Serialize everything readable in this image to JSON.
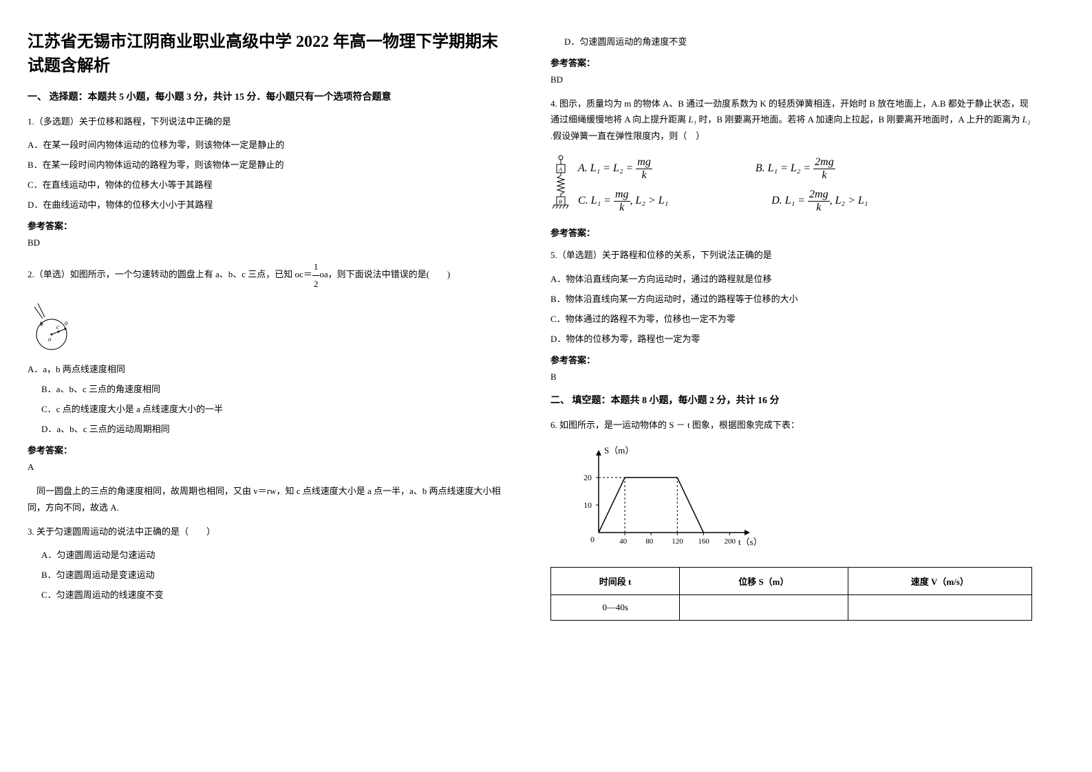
{
  "title": "江苏省无锡市江阴商业职业高级中学 2022 年高一物理下学期期末试题含解析",
  "section1": {
    "header": "一、 选择题：本题共 5 小题，每小题 3 分，共计 15 分．每小题只有一个选项符合题意",
    "q1": {
      "stem": "1.（多选题）关于位移和路程，下列说法中正确的是",
      "optA": "A．在某一段时间内物体运动的位移为零，则该物体一定是静止的",
      "optB": "B．在某一段时间内物体运动的路程为零，则该物体一定是静止的",
      "optC": "C．在直线运动中，物体的位移大小等于其路程",
      "optD": "D．在曲线运动中，物体的位移大小小于其路程",
      "answerLabel": "参考答案：",
      "answer": "BD"
    },
    "q2": {
      "stem_pre": "2.（单选）如图所示，一个匀速转动的圆盘上有 a、b、c 三点，已知 oc＝",
      "stem_post": "oa，则下面说法中错误的是(　　)",
      "frac_num": "1",
      "frac_den": "2",
      "optA": "A．a，b 两点线速度相同",
      "optB": "B．a、b、c 三点的角速度相同",
      "optC": "C．c 点的线速度大小是 a 点线速度大小的一半",
      "optD": "D．a、b、c 三点的运动周期相同",
      "answerLabel": "参考答案：",
      "answer": "A",
      "explanation": "　同一圆盘上的三点的角速度相同，故周期也相同，又由 v＝rw，知 c 点线速度大小是 a 点一半，a、b 两点线速度大小相同，方向不同，故选 A."
    },
    "q3": {
      "stem": "3. 关于匀速圆周运动的说法中正确的是（　　）",
      "optA": "A．匀速圆周运动是匀速运动",
      "optB": "B．匀速圆周运动是变速运动",
      "optC": "C．匀速圆周运动的线速度不变",
      "optD": "D．匀速圆周运动的角速度不变",
      "answerLabel": "参考答案：",
      "answer": "BD"
    },
    "q4": {
      "stem_p1": "4. 图示，质量均为 m 的物体 A、B 通过一劲度系数为 K 的轻质弹簧相连，开始时 B 放在地面上，A.B 都处于静止状态，现通过细绳缓慢地将 A 向上提升距离 ",
      "L1": "L₁",
      "stem_p2": " 时，B 刚要离开地面。若将 A 加速向上拉起，B 刚要离开地面时，A 上升的距离为 ",
      "L2": "L₂",
      "stem_p3": " .假设弹簧一直在弹性限度内，则（　）",
      "eqA_label": "A.",
      "eqA": "L₁ = L₂ = ",
      "eqA_frac_num": "mg",
      "eqA_frac_den": "k",
      "eqB_label": "B.",
      "eqB": "L₁ = L₂ = ",
      "eqB_frac_num": "2mg",
      "eqB_frac_den": "k",
      "eqC_label": "C.",
      "eqC_p1": "L₁ = ",
      "eqC_frac_num": "mg",
      "eqC_frac_den": "k",
      "eqC_p2": ", L₂ > L₁",
      "eqD_label": "D.",
      "eqD_p1": "L₁ = ",
      "eqD_frac_num": "2mg",
      "eqD_frac_den": "k",
      "eqD_p2": ", L₂ > L₁",
      "answerLabel": "参考答案："
    },
    "q5": {
      "stem": "5.（单选题）关于路程和位移的关系，下列说法正确的是",
      "optA": "A．物体沿直线向某一方向运动时，通过的路程就是位移",
      "optB": "B．物体沿直线向某一方向运动时，通过的路程等于位移的大小",
      "optC": "C．物体通过的路程不为零，位移也一定不为零",
      "optD": "D．物体的位移为零，路程也一定为零",
      "answerLabel": "参考答案：",
      "answer": "B"
    }
  },
  "section2": {
    "header": "二、 填空题：本题共 8 小题，每小题 2 分，共计 16 分",
    "q6": {
      "stem": "6. 如图所示，是一运动物体的 S － t 图象，根据图象完成下表：",
      "chart": {
        "type": "line",
        "y_label": "S（m）",
        "x_label": "t（s）",
        "y_ticks": [
          10,
          20
        ],
        "x_ticks": [
          40,
          80,
          120,
          160,
          200
        ],
        "ylim": [
          0,
          25
        ],
        "xlim": [
          0,
          210
        ],
        "line_color": "#000000",
        "points": [
          [
            0,
            0
          ],
          [
            40,
            20
          ],
          [
            120,
            20
          ],
          [
            160,
            0
          ]
        ]
      },
      "table": {
        "headers": [
          "时间段 t",
          "位移 S（m）",
          "速度 V（m/s）"
        ],
        "rows": [
          [
            "0—40s",
            "",
            ""
          ]
        ]
      }
    }
  }
}
